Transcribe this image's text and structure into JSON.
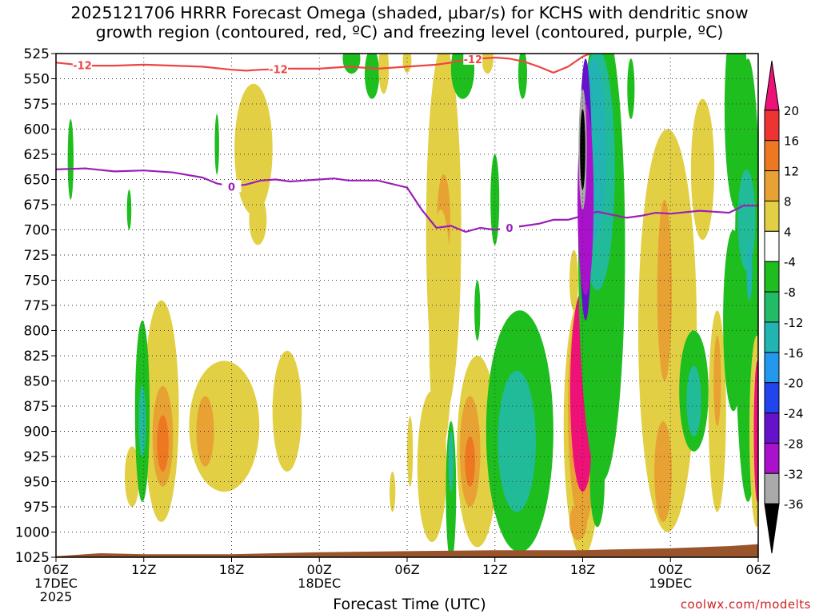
{
  "title": {
    "line1": "2025121706 HRRR Forecast Omega (shaded, μbar/s) for KCHS with dendritic snow",
    "line2": "growth region (contoured, red, ºC) and freezing level (contoured, purple, ºC)"
  },
  "xlabel": "Forecast Time (UTC)",
  "credit": "coolwx.com/modelts",
  "chart_data": {
    "type": "heatmap",
    "x_unit": "hours since 2025-12-17 06Z",
    "x_range": [
      0,
      48
    ],
    "x_ticks": [
      {
        "x": 0,
        "label": "06Z",
        "sub": [
          "17DEC",
          "2025"
        ]
      },
      {
        "x": 6,
        "label": "12Z",
        "sub": []
      },
      {
        "x": 12,
        "label": "18Z",
        "sub": []
      },
      {
        "x": 18,
        "label": "00Z",
        "sub": [
          "18DEC"
        ]
      },
      {
        "x": 24,
        "label": "06Z",
        "sub": []
      },
      {
        "x": 30,
        "label": "12Z",
        "sub": []
      },
      {
        "x": 36,
        "label": "18Z",
        "sub": []
      },
      {
        "x": 42,
        "label": "00Z",
        "sub": [
          "19DEC"
        ]
      },
      {
        "x": 48,
        "label": "06Z",
        "sub": []
      }
    ],
    "y_unit": "hPa",
    "y_range": [
      525,
      1025
    ],
    "y_ticks": [
      525,
      550,
      575,
      600,
      625,
      650,
      675,
      700,
      725,
      750,
      775,
      800,
      825,
      850,
      875,
      900,
      925,
      950,
      975,
      1000,
      1025
    ],
    "y_tick_labels": [
      "525",
      "550",
      "575",
      "600",
      "625",
      "650",
      "675",
      "700",
      "725",
      "750",
      "775",
      "800",
      "825",
      "850",
      "875",
      "900",
      "925",
      "950",
      "975",
      "1000",
      "1025"
    ],
    "grid": true,
    "colorbar": {
      "labels": [
        "20",
        "16",
        "12",
        "8",
        "4",
        "-4",
        "-8",
        "-12",
        "-16",
        "-20",
        "-24",
        "-28",
        "-32",
        "-36"
      ],
      "colors": [
        "#ee1177",
        "#ee3333",
        "#ee7722",
        "#e8a233",
        "#e2cf44",
        "#ffffff",
        "#1ebe1e",
        "#22bb66",
        "#22b3b3",
        "#2299ee",
        "#2244ee",
        "#6611cc",
        "#aa11cc",
        "#aaaaaa",
        "#000000"
      ]
    },
    "freezing_level": {
      "label": "0",
      "color": "#9a1fb8",
      "points": [
        [
          0,
          640
        ],
        [
          2,
          639
        ],
        [
          4,
          642
        ],
        [
          6,
          641
        ],
        [
          8,
          643
        ],
        [
          10,
          648
        ],
        [
          11,
          654
        ],
        [
          12,
          657
        ],
        [
          13,
          655
        ],
        [
          14,
          651
        ],
        [
          15,
          650
        ],
        [
          16,
          652
        ],
        [
          18,
          650
        ],
        [
          19,
          649
        ],
        [
          20,
          651
        ],
        [
          22,
          651
        ],
        [
          24,
          658
        ],
        [
          25,
          680
        ],
        [
          26,
          698
        ],
        [
          27,
          696
        ],
        [
          28,
          702
        ],
        [
          29,
          698
        ],
        [
          30,
          700
        ],
        [
          31,
          698
        ],
        [
          32,
          696
        ],
        [
          33,
          694
        ],
        [
          34,
          690
        ],
        [
          35,
          690
        ],
        [
          36,
          686
        ],
        [
          37,
          682
        ],
        [
          38,
          685
        ],
        [
          39,
          688
        ],
        [
          40,
          686
        ],
        [
          41,
          683
        ],
        [
          42,
          684
        ],
        [
          44,
          681
        ],
        [
          46,
          683
        ],
        [
          47,
          676
        ],
        [
          48,
          676
        ]
      ]
    },
    "dgz_level": {
      "label": "-12",
      "color": "#ee4444",
      "points": [
        [
          0,
          534
        ],
        [
          2,
          537
        ],
        [
          4,
          537
        ],
        [
          6,
          536
        ],
        [
          8,
          537
        ],
        [
          10,
          538
        ],
        [
          12,
          541
        ],
        [
          13,
          542
        ],
        [
          14,
          541
        ],
        [
          16,
          540
        ],
        [
          18,
          540
        ],
        [
          20,
          538
        ],
        [
          22,
          540
        ],
        [
          24,
          538
        ],
        [
          26,
          536
        ],
        [
          27,
          534
        ],
        [
          28,
          531
        ],
        [
          29,
          530
        ],
        [
          30,
          529
        ],
        [
          31,
          530
        ],
        [
          32,
          533
        ],
        [
          33,
          538
        ],
        [
          34,
          544
        ],
        [
          35,
          538
        ],
        [
          36,
          528
        ],
        [
          37,
          522
        ]
      ]
    },
    "shading_regions": [
      {
        "level": 4,
        "cx": 5.2,
        "cy": 945,
        "rx": 0.5,
        "ry": 30
      },
      {
        "level": 4,
        "cx": 7.2,
        "cy": 880,
        "rx": 1.2,
        "ry": 110
      },
      {
        "level": 8,
        "cx": 7.3,
        "cy": 905,
        "rx": 0.7,
        "ry": 50
      },
      {
        "level": 12,
        "cx": 7.3,
        "cy": 912,
        "rx": 0.4,
        "ry": 28
      },
      {
        "level": -8,
        "cx": 5.9,
        "cy": 880,
        "rx": 0.5,
        "ry": 90
      },
      {
        "level": -12,
        "cx": 5.9,
        "cy": 890,
        "rx": 0.25,
        "ry": 35
      },
      {
        "level": 4,
        "cx": 11.5,
        "cy": 895,
        "rx": 2.4,
        "ry": 65
      },
      {
        "level": 8,
        "cx": 10.2,
        "cy": 900,
        "rx": 0.6,
        "ry": 35
      },
      {
        "level": 4,
        "cx": 15.8,
        "cy": 880,
        "rx": 1.0,
        "ry": 60
      },
      {
        "level": 4,
        "cx": 13.5,
        "cy": 620,
        "rx": 1.3,
        "ry": 65
      },
      {
        "level": 4,
        "cx": 13.8,
        "cy": 690,
        "rx": 0.6,
        "ry": 25
      },
      {
        "level": -8,
        "cx": 1.0,
        "cy": 630,
        "rx": 0.2,
        "ry": 40
      },
      {
        "level": -8,
        "cx": 5.0,
        "cy": 680,
        "rx": 0.15,
        "ry": 20
      },
      {
        "level": -8,
        "cx": 11.0,
        "cy": 615,
        "rx": 0.15,
        "ry": 30
      },
      {
        "level": -8,
        "cx": 20.2,
        "cy": 530,
        "rx": 0.6,
        "ry": 15
      },
      {
        "level": -8,
        "cx": 21.6,
        "cy": 545,
        "rx": 0.5,
        "ry": 25
      },
      {
        "level": 4,
        "cx": 22.4,
        "cy": 540,
        "rx": 0.35,
        "ry": 25
      },
      {
        "level": 4,
        "cx": 24.0,
        "cy": 532,
        "rx": 0.3,
        "ry": 12
      },
      {
        "level": 4,
        "cx": 26.5,
        "cy": 700,
        "rx": 1.2,
        "ry": 185
      },
      {
        "level": 8,
        "cx": 26.5,
        "cy": 690,
        "rx": 0.45,
        "ry": 45
      },
      {
        "level": 4,
        "cx": 26.3,
        "cy": 800,
        "rx": 0.8,
        "ry": 120
      },
      {
        "level": 4,
        "cx": 25.7,
        "cy": 935,
        "rx": 1.0,
        "ry": 75
      },
      {
        "level": 4,
        "cx": 28.8,
        "cy": 920,
        "rx": 1.4,
        "ry": 95
      },
      {
        "level": 8,
        "cx": 28.3,
        "cy": 920,
        "rx": 0.7,
        "ry": 55
      },
      {
        "level": 12,
        "cx": 28.3,
        "cy": 930,
        "rx": 0.35,
        "ry": 25
      },
      {
        "level": 4,
        "cx": 24.2,
        "cy": 920,
        "rx": 0.2,
        "ry": 35
      },
      {
        "level": 4,
        "cx": 23.0,
        "cy": 960,
        "rx": 0.2,
        "ry": 20
      },
      {
        "level": -8,
        "cx": 27.8,
        "cy": 540,
        "rx": 0.8,
        "ry": 30
      },
      {
        "level": -8,
        "cx": 27.0,
        "cy": 960,
        "rx": 0.35,
        "ry": 70
      },
      {
        "level": -12,
        "cx": 27.0,
        "cy": 930,
        "rx": 0.18,
        "ry": 30
      },
      {
        "level": -8,
        "cx": 28.8,
        "cy": 780,
        "rx": 0.2,
        "ry": 30
      },
      {
        "level": -8,
        "cx": 30.0,
        "cy": 670,
        "rx": 0.3,
        "ry": 45
      },
      {
        "level": 4,
        "cx": 29.5,
        "cy": 530,
        "rx": 0.4,
        "ry": 15
      },
      {
        "level": -8,
        "cx": 31.7,
        "cy": 900,
        "rx": 2.3,
        "ry": 120
      },
      {
        "level": -12,
        "cx": 31.5,
        "cy": 910,
        "rx": 1.3,
        "ry": 70
      },
      {
        "level": -8,
        "cx": 31.9,
        "cy": 545,
        "rx": 0.3,
        "ry": 25
      },
      {
        "level": 4,
        "cx": 36.0,
        "cy": 895,
        "rx": 1.3,
        "ry": 130
      },
      {
        "level": 4,
        "cx": 35.4,
        "cy": 750,
        "rx": 0.3,
        "ry": 30
      },
      {
        "level": 8,
        "cx": 36.0,
        "cy": 880,
        "rx": 1.0,
        "ry": 115
      },
      {
        "level": 20,
        "cx": 36.0,
        "cy": 860,
        "rx": 0.85,
        "ry": 100
      },
      {
        "level": 8,
        "cx": 35.7,
        "cy": 990,
        "rx": 0.6,
        "ry": 18
      },
      {
        "level": -8,
        "cx": 37.3,
        "cy": 720,
        "rx": 1.6,
        "ry": 230
      },
      {
        "level": -12,
        "cx": 37.0,
        "cy": 640,
        "rx": 1.2,
        "ry": 120
      },
      {
        "level": -16,
        "cx": 36.8,
        "cy": 620,
        "rx": 0.8,
        "ry": 90
      },
      {
        "level": -24,
        "cx": 36.2,
        "cy": 660,
        "rx": 0.45,
        "ry": 130
      },
      {
        "level": -28,
        "cx": 36.2,
        "cy": 670,
        "rx": 0.55,
        "ry": 95
      },
      {
        "level": -32,
        "cx": 36.0,
        "cy": 620,
        "rx": 0.28,
        "ry": 60
      },
      {
        "level": -36,
        "cx": 36.0,
        "cy": 620,
        "rx": 0.18,
        "ry": 40
      },
      {
        "level": -8,
        "cx": 37.0,
        "cy": 950,
        "rx": 0.5,
        "ry": 45
      },
      {
        "level": -8,
        "cx": 39.3,
        "cy": 560,
        "rx": 0.25,
        "ry": 30
      },
      {
        "level": 4,
        "cx": 41.8,
        "cy": 800,
        "rx": 2.0,
        "ry": 200
      },
      {
        "level": 4,
        "cx": 44.2,
        "cy": 640,
        "rx": 0.8,
        "ry": 70
      },
      {
        "level": 8,
        "cx": 41.6,
        "cy": 760,
        "rx": 0.5,
        "ry": 90
      },
      {
        "level": 8,
        "cx": 41.5,
        "cy": 940,
        "rx": 0.6,
        "ry": 50
      },
      {
        "level": -8,
        "cx": 43.6,
        "cy": 860,
        "rx": 1.0,
        "ry": 60
      },
      {
        "level": -12,
        "cx": 43.6,
        "cy": 870,
        "rx": 0.5,
        "ry": 35
      },
      {
        "level": 4,
        "cx": 45.2,
        "cy": 880,
        "rx": 0.6,
        "ry": 100
      },
      {
        "level": 8,
        "cx": 45.2,
        "cy": 850,
        "rx": 0.25,
        "ry": 45
      },
      {
        "level": -8,
        "cx": 46.5,
        "cy": 580,
        "rx": 0.8,
        "ry": 100
      },
      {
        "level": -8,
        "cx": 46.3,
        "cy": 790,
        "rx": 0.7,
        "ry": 90
      },
      {
        "level": -8,
        "cx": 47.3,
        "cy": 750,
        "rx": 0.9,
        "ry": 220
      },
      {
        "level": -12,
        "cx": 47.2,
        "cy": 690,
        "rx": 0.6,
        "ry": 50
      },
      {
        "level": -16,
        "cx": 47.4,
        "cy": 740,
        "rx": 0.2,
        "ry": 30
      },
      {
        "level": 4,
        "cx": 47.9,
        "cy": 900,
        "rx": 0.5,
        "ry": 95
      },
      {
        "level": 20,
        "cx": 47.95,
        "cy": 900,
        "rx": 0.25,
        "ry": 70
      }
    ],
    "terrain_color": "#99542c"
  }
}
